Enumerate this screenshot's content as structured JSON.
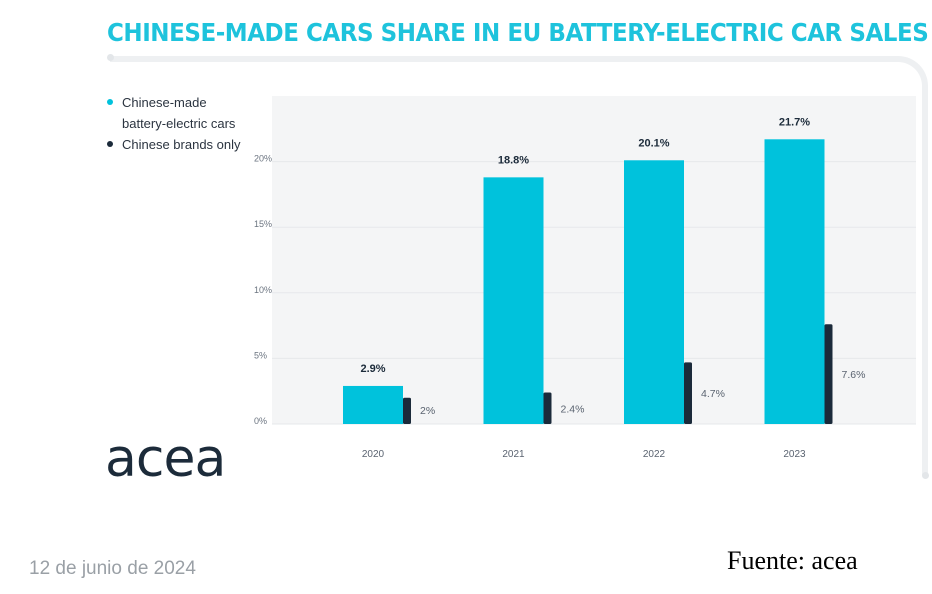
{
  "title": "CHINESE-MADE CARS SHARE IN EU BATTERY-ELECTRIC CAR SALES",
  "colors": {
    "primary": "#00c2dc",
    "secondary": "#1b2a3a",
    "title": "#1ec3dc"
  },
  "legend": {
    "items": [
      {
        "label": "Chinese-made battery-electric cars",
        "color": "#00c2dc"
      },
      {
        "label": "Chinese brands only",
        "color": "#1b2a3a"
      }
    ]
  },
  "chart_data": {
    "type": "bar",
    "title": "CHINESE-MADE CARS SHARE IN EU BATTERY-ELECTRIC CAR SALES",
    "xlabel": "",
    "ylabel": "",
    "ylim": [
      0,
      25
    ],
    "yticks": [
      0,
      5,
      10,
      15,
      20
    ],
    "ytick_labels": [
      "0%",
      "5%",
      "10%",
      "15%",
      "20%"
    ],
    "categories": [
      "2020",
      "2021",
      "2022",
      "2023"
    ],
    "series": [
      {
        "name": "Chinese-made battery-electric cars",
        "values": [
          2.9,
          18.8,
          20.1,
          21.7
        ],
        "labels": [
          "2.9%",
          "18.8%",
          "20.1%",
          "21.7%"
        ]
      },
      {
        "name": "Chinese brands only",
        "values": [
          2.0,
          2.4,
          4.7,
          7.6
        ],
        "labels": [
          "2%",
          "2.4%",
          "4.7%",
          "7.6%"
        ]
      }
    ],
    "legend_position": "top-left",
    "grid": true
  },
  "logo": {
    "text": "acea"
  },
  "footer": {
    "date": "12 de junio de 2024",
    "source": "Fuente: acea"
  }
}
